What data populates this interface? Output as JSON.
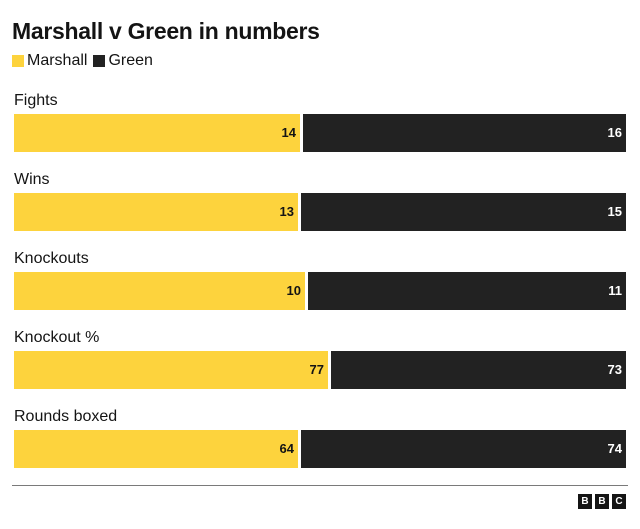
{
  "colors": {
    "marshall": "#fdd33d",
    "green": "#222222"
  },
  "chart_data": {
    "type": "bar",
    "title": "Marshall v Green in numbers",
    "legend": "top-left",
    "series": [
      {
        "name": "Marshall",
        "values": [
          14,
          13,
          10,
          77,
          64
        ]
      },
      {
        "name": "Green",
        "values": [
          16,
          15,
          11,
          73,
          74
        ]
      }
    ],
    "categories": [
      "Fights",
      "Wins",
      "Knockouts",
      "Knockout %",
      "Rounds boxed"
    ],
    "stacked": "100%"
  },
  "logo": {
    "letters": [
      "B",
      "B",
      "C"
    ]
  }
}
